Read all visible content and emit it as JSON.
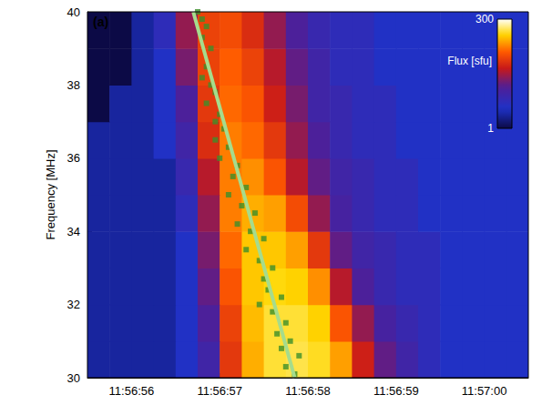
{
  "chart_data": {
    "type": "heatmap",
    "panel_label": "(a)",
    "y_label": "Frequency [MHz]",
    "xlim": [
      55.5,
      60.5
    ],
    "xticks": [
      {
        "value": 56,
        "label": "11:56:56"
      },
      {
        "value": 57,
        "label": "11:56:57"
      },
      {
        "value": 58,
        "label": "11:56:58"
      },
      {
        "value": 59,
        "label": "11:56:59"
      },
      {
        "value": 60,
        "label": "11:57:00"
      }
    ],
    "ylim": [
      30,
      40
    ],
    "yticks": [
      30,
      32,
      34,
      36,
      38,
      40
    ],
    "grid": false,
    "heatmap": {
      "x_edges": [
        55.5,
        55.75,
        56,
        56.25,
        56.5,
        56.75,
        57,
        57.25,
        57.5,
        57.75,
        58,
        58.25,
        58.5,
        58.75,
        59,
        59.25,
        59.5,
        59.75,
        60,
        60.25,
        60.5
      ],
      "y_edges": [
        30,
        31,
        32,
        33,
        34,
        35,
        36,
        37,
        38,
        39,
        40
      ],
      "cells": [
        [
          2,
          2,
          2,
          2,
          3,
          6,
          35,
          100,
          160,
          170,
          150,
          90,
          25,
          10,
          6,
          4,
          3,
          3,
          3,
          3
        ],
        [
          2,
          2,
          2,
          2,
          3,
          8,
          40,
          110,
          160,
          160,
          130,
          50,
          15,
          7,
          5,
          4,
          3,
          3,
          3,
          3
        ],
        [
          2,
          2,
          2,
          2,
          3,
          10,
          50,
          120,
          140,
          130,
          80,
          20,
          8,
          5,
          4,
          4,
          3,
          3,
          3,
          3
        ],
        [
          2,
          2,
          2,
          2,
          3,
          12,
          60,
          120,
          120,
          90,
          35,
          10,
          6,
          5,
          4,
          4,
          3,
          3,
          3,
          3
        ],
        [
          2,
          2,
          2,
          2,
          4,
          15,
          70,
          100,
          90,
          45,
          15,
          7,
          5,
          4,
          4,
          3,
          3,
          3,
          3,
          3
        ],
        [
          2,
          2,
          2,
          2,
          5,
          20,
          70,
          80,
          50,
          20,
          10,
          6,
          5,
          4,
          4,
          3,
          3,
          3,
          3,
          3
        ],
        [
          2,
          2,
          2,
          3,
          6,
          30,
          70,
          60,
          35,
          15,
          8,
          5,
          4,
          4,
          3,
          3,
          3,
          3,
          3,
          3
        ],
        [
          1,
          2,
          2,
          3,
          8,
          35,
          60,
          50,
          25,
          12,
          6,
          5,
          4,
          4,
          3,
          3,
          3,
          3,
          3,
          3
        ],
        [
          1,
          1,
          2,
          3,
          12,
          40,
          55,
          40,
          20,
          10,
          6,
          4,
          4,
          3,
          3,
          3,
          3,
          3,
          3,
          3
        ],
        [
          1,
          1,
          2,
          4,
          15,
          40,
          45,
          30,
          15,
          8,
          5,
          4,
          4,
          3,
          3,
          3,
          3,
          3,
          3,
          3
        ]
      ]
    },
    "colorbar": {
      "label": "Flux [sfu]",
      "range": [
        1,
        300
      ],
      "ticks": [
        1,
        300
      ],
      "log": true
    },
    "series": [
      {
        "type": "scatter",
        "marker": "square",
        "color": "#3c8f2a",
        "x": [
          56.75,
          56.8,
          56.85,
          56.8,
          56.9,
          56.85,
          56.8,
          56.9,
          56.95,
          56.85,
          57.0,
          56.95,
          57.05,
          56.95,
          57.1,
          57.0,
          57.2,
          57.15,
          57.3,
          57.1,
          57.25,
          57.4,
          57.2,
          57.35,
          57.5,
          57.3,
          57.45,
          57.6,
          57.5,
          57.55,
          57.7,
          57.45,
          57.6,
          57.75,
          57.65,
          57.8,
          57.7,
          57.9,
          57.75,
          57.85
        ],
        "y": [
          40,
          39.8,
          39.6,
          39.3,
          39.0,
          38.5,
          38.2,
          38.0,
          37.8,
          37.5,
          37.2,
          37.0,
          36.8,
          36.5,
          36.3,
          36.0,
          35.8,
          35.5,
          35.2,
          35.0,
          34.7,
          34.5,
          34.2,
          34.0,
          33.8,
          33.5,
          33.2,
          33.0,
          32.7,
          32.4,
          32.2,
          32.0,
          31.8,
          31.5,
          31.2,
          31.0,
          30.8,
          30.6,
          30.3,
          30.1
        ]
      },
      {
        "type": "line",
        "line_style": "solid",
        "color": "#a6dc8c",
        "x": [
          56.7,
          57.85
        ],
        "y": [
          40,
          30
        ]
      }
    ]
  }
}
